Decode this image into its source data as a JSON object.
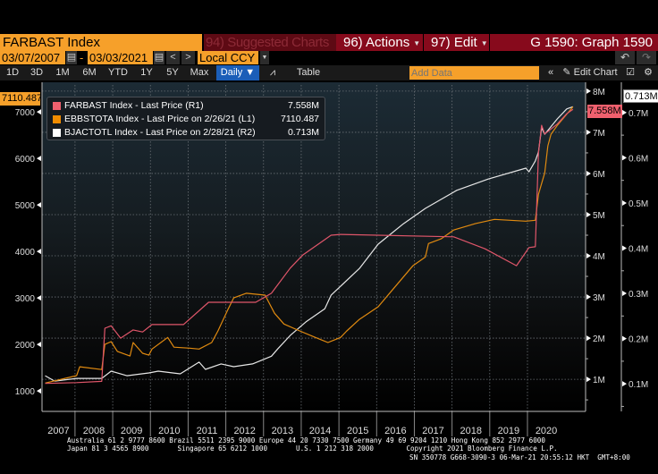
{
  "header": {
    "security": "FARBAST Index",
    "suggested": "94) Suggested Charts",
    "actions": "96) Actions",
    "edit": "97) Edit",
    "graph_title": "G 1590: Graph 1590"
  },
  "controls": {
    "start_date": "03/07/2007",
    "date_sep": "-",
    "end_date": "03/03/2021",
    "currency": "Local CCY",
    "periods": [
      "1D",
      "3D",
      "1M",
      "6M",
      "YTD",
      "1Y",
      "5Y",
      "Max"
    ],
    "frequency": "Daily ▼",
    "table": "Table",
    "add_data_placeholder": "Add Data",
    "edit_chart": "Edit Chart",
    "icons": [
      "calendar-icon",
      "chevron-left-icon",
      "chevron-right-icon",
      "dropdown-icon",
      "line-chart-icon",
      "undo-icon",
      "redo-icon",
      "double-chevron-left-icon",
      "pencil-icon",
      "annotate-icon",
      "gear-icon"
    ]
  },
  "legend": [
    {
      "label": "FARBAST Index - Last Price (R1)",
      "value": "7.558M",
      "color": "#f0606e"
    },
    {
      "label": "EBBSTOTA Index - Last Price on 2/26/21 (L1)",
      "value": "7110.487",
      "color": "#f08c00"
    },
    {
      "label": "BJACTOTL Index - Last Price on 2/28/21 (R2)",
      "value": "0.713M",
      "color": "#ffffff"
    }
  ],
  "last_values": {
    "left": "7110.487",
    "r1": "7.558M",
    "r2": "0.713M"
  },
  "chart_data": {
    "type": "line",
    "grid": true,
    "legend_position": "top-left",
    "xlim": [
      "2007-02",
      "2021-07"
    ],
    "x_tick_labels": [
      "2007",
      "2008",
      "2009",
      "2010",
      "2011",
      "2012",
      "2013",
      "2014",
      "2015",
      "2016",
      "2017",
      "2018",
      "2019",
      "2020"
    ],
    "axes": {
      "L1": {
        "ylim": [
          560,
          7580
        ],
        "ticks": [
          1000,
          2000,
          3000,
          4000,
          5000,
          6000,
          7000
        ],
        "tick_labels": [
          "1000",
          "2000",
          "3000",
          "4000",
          "5000",
          "6000",
          "7000"
        ]
      },
      "R1": {
        "ylim": [
          0.22,
          8.15
        ],
        "unit": "M",
        "ticks": [
          1,
          2,
          3,
          4,
          5,
          6,
          7,
          8
        ],
        "tick_labels": [
          "1M",
          "2M",
          "3M",
          "4M",
          "5M",
          "6M",
          "7M",
          "8M"
        ]
      },
      "R2": {
        "ylim": [
          0.039,
          0.761
        ],
        "unit": "M",
        "ticks": [
          0.1,
          0.2,
          0.3,
          0.4,
          0.5,
          0.6,
          0.7
        ],
        "tick_labels": [
          "0.1M",
          "0.2M",
          "0.3M",
          "0.4M",
          "0.5M",
          "0.6M",
          "0.7M"
        ]
      }
    },
    "series": [
      {
        "name": "FARBAST Index - Last Price (R1)",
        "axis": "R1",
        "color": "#e0566a",
        "x": [
          "2007-03",
          "2008-01",
          "2008-09",
          "2008-10",
          "2008-12",
          "2009-03",
          "2009-07",
          "2009-10",
          "2010-01",
          "2010-11",
          "2011-07",
          "2012-10",
          "2013-01",
          "2013-03",
          "2013-09",
          "2014-01",
          "2014-10",
          "2015-01",
          "2018-01",
          "2018-11",
          "2019-09",
          "2020-01",
          "2020-03",
          "2020-04",
          "2020-05",
          "2020-06",
          "2020-10",
          "2021-01",
          "2021-03"
        ],
        "y": [
          0.9,
          0.92,
          0.95,
          2.24,
          2.3,
          2.0,
          2.2,
          2.15,
          2.33,
          2.33,
          2.87,
          2.87,
          3.0,
          3.09,
          3.7,
          4.02,
          4.5,
          4.52,
          4.46,
          4.17,
          3.76,
          4.2,
          4.22,
          6.5,
          7.17,
          6.96,
          7.2,
          7.45,
          7.558
        ]
      },
      {
        "name": "EBBSTOTA Index - Last Price on 2/26/21 (L1)",
        "axis": "L1",
        "color": "#e08a10",
        "x": [
          "2007-03",
          "2008-01",
          "2008-02",
          "2008-09",
          "2008-10",
          "2008-12",
          "2009-02",
          "2009-06",
          "2009-07",
          "2009-10",
          "2009-12",
          "2010-01",
          "2010-06",
          "2010-08",
          "2011-01",
          "2011-04",
          "2011-08",
          "2011-10",
          "2012-01",
          "2012-03",
          "2012-07",
          "2013-01",
          "2013-04",
          "2013-07",
          "2013-12",
          "2014-05",
          "2014-09",
          "2015-01",
          "2015-03",
          "2015-07",
          "2016-01",
          "2016-06",
          "2016-12",
          "2017-04",
          "2017-05",
          "2017-09",
          "2018-01",
          "2018-08",
          "2019-02",
          "2019-12",
          "2020-03",
          "2020-04",
          "2020-06",
          "2020-07",
          "2020-08",
          "2020-10",
          "2021-03"
        ],
        "y": [
          1170,
          1330,
          1520,
          1460,
          2000,
          2060,
          1850,
          1750,
          2040,
          1810,
          1770,
          1900,
          2150,
          1940,
          1920,
          1900,
          2040,
          2290,
          2730,
          3000,
          3100,
          3060,
          2670,
          2440,
          2290,
          2150,
          2040,
          2150,
          2290,
          2540,
          2810,
          3210,
          3690,
          3880,
          4170,
          4270,
          4460,
          4600,
          4690,
          4650,
          4670,
          5230,
          5690,
          6270,
          6520,
          6710,
          7110.487
        ]
      },
      {
        "name": "BJACTOTL Index - Last Price on 2/28/21 (R2)",
        "axis": "R2",
        "color": "#e6e6e6",
        "x": [
          "2007-03",
          "2007-06",
          "2008-01",
          "2008-09",
          "2008-12",
          "2009-05",
          "2009-12",
          "2010-03",
          "2010-10",
          "2011-04",
          "2011-06",
          "2011-11",
          "2012-03",
          "2012-09",
          "2013-03",
          "2013-05",
          "2013-09",
          "2014-02",
          "2014-08",
          "2014-10",
          "2015-07",
          "2016-01",
          "2016-09",
          "2017-04",
          "2018-02",
          "2018-12",
          "2019-12",
          "2020-01",
          "2020-03",
          "2020-04",
          "2020-05",
          "2020-06",
          "2020-10",
          "2021-01",
          "2021-03"
        ],
        "y": [
          0.118,
          0.106,
          0.112,
          0.112,
          0.128,
          0.118,
          0.124,
          0.128,
          0.122,
          0.148,
          0.132,
          0.144,
          0.138,
          0.144,
          0.161,
          0.177,
          0.207,
          0.237,
          0.266,
          0.296,
          0.355,
          0.409,
          0.454,
          0.488,
          0.528,
          0.553,
          0.577,
          0.569,
          0.593,
          0.613,
          0.666,
          0.652,
          0.686,
          0.708,
          0.713
        ]
      }
    ]
  },
  "footer": {
    "line1": "Australia 61 2 9777 8600 Brazil 5511 2395 9000 Europe 44 20 7330 7500 Germany 49 69 9204 1210 Hong Kong 852 2977 6000",
    "line2": "Japan 81 3 4565 8900       Singapore 65 6212 1000       U.S. 1 212 318 2000        Copyright 2021 Bloomberg Finance L.P.",
    "line3": "SN 350778 G668-3090-3 06-Mar-21 20:55:12 HKT  GMT+8:00"
  }
}
